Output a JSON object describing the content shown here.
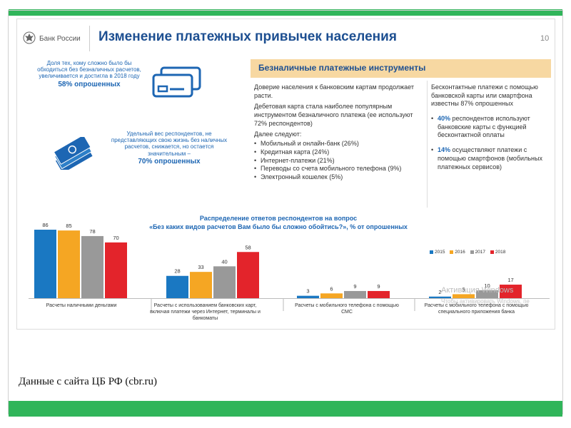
{
  "slide": {
    "logo_text": "Банк России",
    "title": "Изменение платежных привычек населения",
    "page_number": "10",
    "left_stat_1": {
      "text": "Доля тех, кому сложно было бы обходиться без безналичных расчетов, увеличивается и достигла в 2018 году",
      "highlight": "58% опрошенных"
    },
    "left_stat_2": {
      "text": "Удельный вес респондентов, не представляющих свою жизнь без наличных расчетов, снижается, но остается значительным –",
      "highlight": "70% опрошенных"
    },
    "section_header": "Безналичные платежные инструменты",
    "middle_col": {
      "p1": "Доверие населения к банковским картам продолжает расти.",
      "p2": "Дебетовая карта стала наиболее популярным инструментом безналичного платежа (ее используют 72% респондентов)",
      "list_title": "Далее следуют:",
      "items": [
        "Мобильный и онлайн-банк (26%)",
        "Кредитная карта (24%)",
        "Интернет-платежи (21%)",
        "Переводы со счета мобильного телефона (9%)",
        "Электронный кошелек (5%)"
      ]
    },
    "right_col": {
      "p1": "Бесконтактные платежи с помощью банковской карты или смартфона известны 87% опрошенных",
      "b1_pct": "40%",
      "b1_text": " респондентов используют банковские карты с функцией бесконтактной оплаты",
      "b2_pct": "14%",
      "b2_text": " осуществляют платежи с помощью смартфонов (мобильных платежных сервисов)"
    },
    "watermark": {
      "line1": "Активация Windows",
      "line2": "Чтобы активировать Windows, пе"
    }
  },
  "colors": {
    "s2015": "#1a78c2",
    "s2016": "#f5a623",
    "s2017": "#999999",
    "s2018": "#e3242b",
    "title_blue": "#1d4f91",
    "accent_green": "#30b55a"
  },
  "chart_data": {
    "type": "bar",
    "title": "Распределение ответов респондентов на вопрос «Без каких видов расчетов Вам было бы сложно обойтись?», % от опрошенных",
    "title_line1": "Распределение ответов респондентов на вопрос",
    "title_line2": "«Без каких видов расчетов Вам было бы сложно обойтись?», % от опрошенных",
    "categories": [
      "Расчеты наличными деньгами",
      "Расчеты с использованием банковских карт, включая платежи через Интернет, терминалы и банкоматы",
      "Расчеты с мобильного телефона с помощью СМС",
      "Расчеты с мобильного телефона с помощью специального приложения банка"
    ],
    "series": [
      {
        "name": "2015",
        "values": [
          86,
          28,
          3,
          2
        ]
      },
      {
        "name": "2016",
        "values": [
          85,
          33,
          6,
          5
        ]
      },
      {
        "name": "2017",
        "values": [
          78,
          40,
          9,
          10
        ]
      },
      {
        "name": "2018",
        "values": [
          70,
          58,
          9,
          17
        ]
      }
    ],
    "ylim": [
      0,
      90
    ],
    "legend_position": "top-right",
    "grid": false
  },
  "caption": "Данные с сайта ЦБ РФ (cbr.ru)"
}
